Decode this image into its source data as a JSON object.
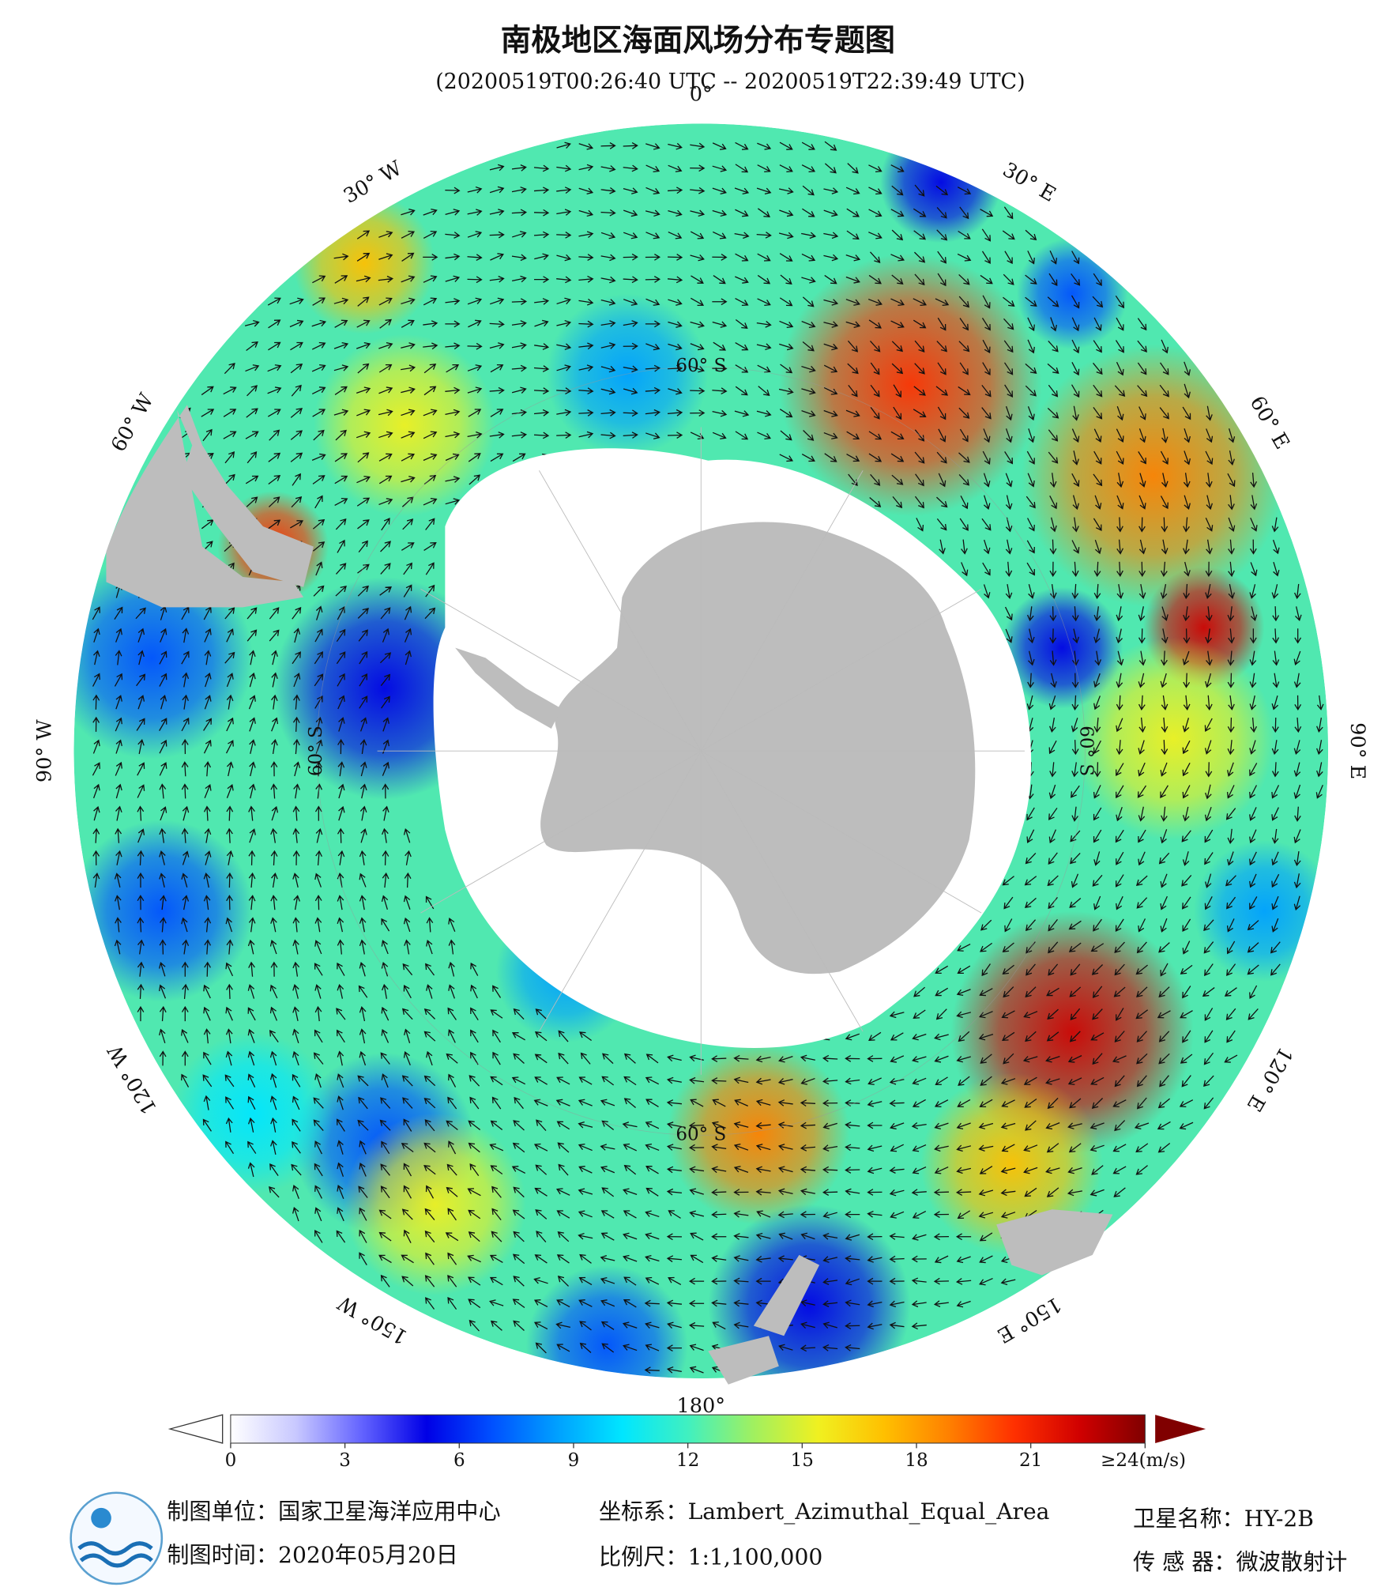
{
  "header": {
    "title": "南极地区海面风场分布专题图",
    "subtitle": "(20200519T00:26:40 UTC -- 20200519T22:39:49 UTC)"
  },
  "map": {
    "boundary_lat": -40,
    "lon_labels": [
      {
        "value": 0,
        "label": "0°"
      },
      {
        "value": 30,
        "label": "30° E"
      },
      {
        "value": 60,
        "label": "60° E"
      },
      {
        "value": 90,
        "label": "90° E"
      },
      {
        "value": 120,
        "label": "120° E"
      },
      {
        "value": 150,
        "label": "150° E"
      },
      {
        "value": 180,
        "label": "180°"
      },
      {
        "value": -150,
        "label": "150° W"
      },
      {
        "value": -120,
        "label": "120° W"
      },
      {
        "value": -90,
        "label": "90° W"
      },
      {
        "value": -60,
        "label": "60° W"
      },
      {
        "value": -30,
        "label": "30° W"
      }
    ],
    "lat_labels": [
      {
        "lat": -60,
        "lon": 0,
        "label": "60° S"
      },
      {
        "lat": -60,
        "lon": 90,
        "label": "60° S"
      },
      {
        "lat": -60,
        "lon": 180,
        "label": "60° S"
      },
      {
        "lat": -60,
        "lon": -90,
        "label": "60° S"
      }
    ]
  },
  "colorbar": {
    "lim": [
      0,
      24
    ],
    "ticks": [
      0,
      3,
      6,
      9,
      12,
      15,
      18,
      21,
      {
        "value": 24,
        "label": "≥24(m/s)"
      }
    ],
    "colors": [
      "#ffffff",
      "#c8c8ff",
      "#6464ff",
      "#0000e6",
      "#0050ff",
      "#00a0ff",
      "#00e6ff",
      "#40f0c0",
      "#a0f060",
      "#f0f020",
      "#ffc000",
      "#ff8000",
      "#ff3000",
      "#d00000",
      "#800000"
    ]
  },
  "footer": {
    "unit": "制图单位：国家卫星海洋应用中心",
    "date": "制图时间：2020年05月20日",
    "crs": "坐标系：Lambert_Azimuthal_Equal_Area",
    "scale": "比例尺：1:1,100,000",
    "satellite": "卫星名称：HY-2B",
    "sensor": "传 感 器：微波散射计"
  }
}
